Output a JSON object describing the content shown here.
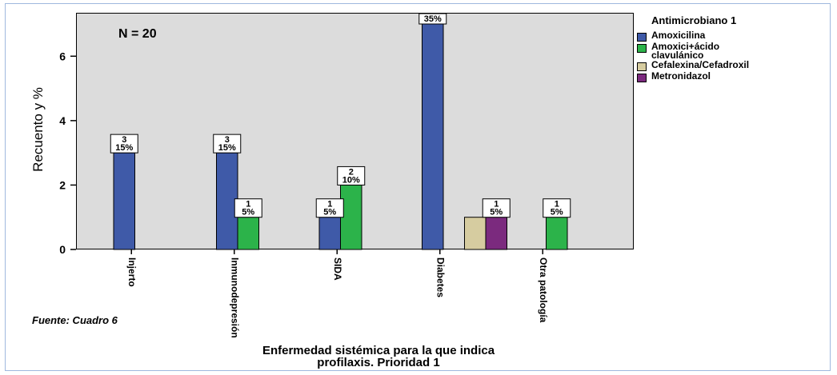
{
  "chart_data": {
    "type": "bar",
    "annotation": "N = 20",
    "ylabel": "Recuento y %",
    "xlabel_lines": [
      "Enfermedad sistémica para la que indica",
      "profilaxis. Prioridad 1"
    ],
    "source": "Fuente: Cuadro 6",
    "ylim": [
      0,
      7.2
    ],
    "yticks": [
      0,
      2,
      4,
      6
    ],
    "grid": false,
    "legend_position": "right",
    "legend_title": "Antimicrobiano 1",
    "categories": [
      "Injerto",
      "Inmunodepresión",
      "SIDA",
      "Diabetes",
      "Otra patología"
    ],
    "series": [
      {
        "name": "Amoxicilina",
        "color": "#3f5aa8",
        "values": [
          3,
          3,
          1,
          7,
          0
        ]
      },
      {
        "name": "Amoxici+ácido clavulánico",
        "label_lines": [
          "Amoxici+ácido",
          "clavulánico"
        ],
        "color": "#2cb34a",
        "values": [
          0,
          1,
          2,
          0,
          1
        ]
      },
      {
        "name": "Cefalexina/Cefadroxil",
        "color": "#d6cca0",
        "values": [
          0,
          0,
          0,
          1,
          0
        ]
      },
      {
        "name": "Metronidazol",
        "color": "#7b2a7e",
        "values": [
          0,
          0,
          0,
          1,
          0
        ]
      }
    ],
    "data_labels": [
      {
        "category": "Injerto",
        "series": "Amoxicilina",
        "lines": [
          "3",
          "15%"
        ]
      },
      {
        "category": "Inmunodepresión",
        "series": "Amoxicilina",
        "lines": [
          "3",
          "15%"
        ]
      },
      {
        "category": "Inmunodepresión",
        "series": "Amoxici+ácido clavulánico",
        "lines": [
          "1",
          "5%"
        ]
      },
      {
        "category": "SIDA",
        "series": "Amoxicilina",
        "lines": [
          "1",
          "5%"
        ]
      },
      {
        "category": "SIDA",
        "series": "Amoxici+ácido clavulánico",
        "lines": [
          "2",
          "10%"
        ]
      },
      {
        "category": "Diabetes",
        "series": "Amoxicilina",
        "lines": [
          "35%"
        ]
      },
      {
        "category": "Diabetes",
        "series": "Metronidazol",
        "lines": [
          "1",
          "5%"
        ]
      },
      {
        "category": "Otra patología",
        "series": "Amoxici+ácido clavulánico",
        "lines": [
          "1",
          "5%"
        ]
      }
    ]
  }
}
